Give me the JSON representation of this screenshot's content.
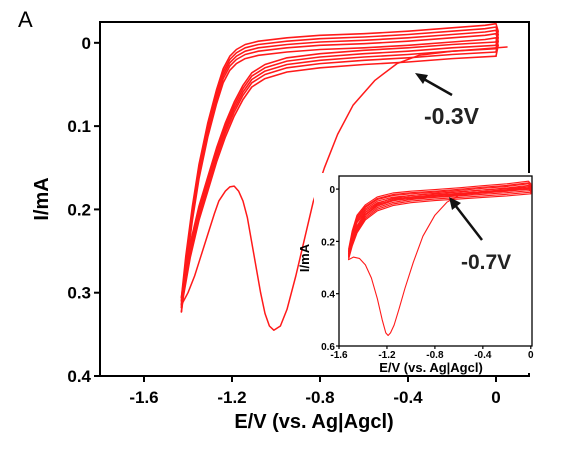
{
  "panel_label": "A",
  "colors": {
    "trace": "#ff1a1a",
    "axes": "#000000",
    "arrow": "#111111"
  },
  "chart_data": [
    {
      "type": "line",
      "name": "main",
      "xlabel": "E/V (vs. Ag|Agcl)",
      "ylabel": "I/mA",
      "xlim": [
        -1.8,
        0.15
      ],
      "ylim": [
        0.4,
        -0.025
      ],
      "y_inverted": true,
      "xticks": [
        -1.6,
        -1.2,
        -0.8,
        -0.4,
        0
      ],
      "xtick_labels": [
        "-1.6",
        "-1.2",
        "-0.8",
        "-0.4",
        "0"
      ],
      "yticks": [
        0,
        0.1,
        0.2,
        0.3,
        0.4
      ],
      "ytick_labels": [
        "0",
        "0.1",
        "0.2",
        "0.3",
        "0.4"
      ],
      "annotation": {
        "text": "-0.3V",
        "points_to": [
          -0.35,
          0.015
        ]
      },
      "series": [
        {
          "style": "first-scan",
          "x": [
            0.05,
            -0.2,
            -0.35,
            -0.45,
            -0.55,
            -0.65,
            -0.72,
            -0.78,
            -0.83,
            -0.87,
            -0.91,
            -0.95,
            -0.98,
            -1.01,
            -1.03,
            -1.05,
            -1.07,
            -1.09,
            -1.11,
            -1.13,
            -1.15,
            -1.17,
            -1.19,
            -1.21,
            -1.23,
            -1.26,
            -1.28,
            -1.31,
            -1.34,
            -1.37,
            -1.4,
            -1.42,
            -1.43
          ],
          "y": [
            0.005,
            0.01,
            0.015,
            0.025,
            0.045,
            0.075,
            0.11,
            0.15,
            0.19,
            0.235,
            0.28,
            0.32,
            0.34,
            0.345,
            0.34,
            0.325,
            0.3,
            0.27,
            0.24,
            0.21,
            0.19,
            0.178,
            0.172,
            0.173,
            0.178,
            0.19,
            0.205,
            0.23,
            0.255,
            0.28,
            0.3,
            0.31,
            0.315
          ]
        },
        {
          "style": "cycle-upper",
          "x": [
            -1.43,
            -1.41,
            -1.38,
            -1.35,
            -1.31,
            -1.27,
            -1.24,
            -1.21,
            -1.18,
            -1.14,
            -1.08,
            -0.95,
            -0.8,
            -0.6,
            -0.4,
            -0.2,
            -0.05,
            0,
            0.01,
            0
          ],
          "y": [
            0.31,
            0.26,
            0.2,
            0.15,
            0.1,
            0.06,
            0.035,
            0.02,
            0.012,
            0.006,
            0.002,
            -0.002,
            -0.005,
            -0.007,
            -0.01,
            -0.014,
            -0.017,
            -0.019,
            -0.01,
            0.003
          ]
        },
        {
          "style": "cycle-lower",
          "x": [
            0,
            -0.2,
            -0.4,
            -0.6,
            -0.8,
            -0.95,
            -1.05,
            -1.11,
            -1.15,
            -1.19,
            -1.23,
            -1.27,
            -1.31,
            -1.35,
            -1.39,
            -1.42,
            -1.43
          ],
          "y": [
            0.003,
            0.006,
            0.01,
            0.013,
            0.017,
            0.022,
            0.03,
            0.04,
            0.055,
            0.075,
            0.1,
            0.13,
            0.165,
            0.2,
            0.245,
            0.29,
            0.31
          ]
        }
      ]
    },
    {
      "type": "line",
      "name": "inset",
      "xlabel": "E/V (vs. Ag|Agcl)",
      "ylabel": "I/mA",
      "xlim": [
        -1.6,
        0.01
      ],
      "ylim": [
        0.6,
        -0.05
      ],
      "y_inverted": true,
      "xticks": [
        -1.6,
        -1.2,
        -0.8,
        -0.4,
        0
      ],
      "xtick_labels": [
        "-1.6",
        "-1.2",
        "-0.8",
        "-0.4",
        "0"
      ],
      "yticks": [
        0,
        0.2,
        0.4,
        0.6
      ],
      "ytick_labels": [
        "0",
        "0.2",
        "0.4",
        "0.6"
      ],
      "annotation": {
        "text": "-0.7V",
        "points_to": [
          -0.58,
          0.02
        ]
      },
      "series": [
        {
          "style": "first-scan",
          "x": [
            0,
            -0.2,
            -0.4,
            -0.5,
            -0.6,
            -0.7,
            -0.8,
            -0.9,
            -0.98,
            -1.05,
            -1.1,
            -1.14,
            -1.17,
            -1.19,
            -1.21,
            -1.24,
            -1.28,
            -1.33,
            -1.38,
            -1.43,
            -1.48,
            -1.52
          ],
          "y": [
            0.0,
            0.005,
            0.01,
            0.015,
            0.025,
            0.05,
            0.1,
            0.18,
            0.28,
            0.38,
            0.46,
            0.52,
            0.55,
            0.56,
            0.55,
            0.5,
            0.42,
            0.34,
            0.29,
            0.265,
            0.26,
            0.27
          ]
        },
        {
          "style": "cycle-upper",
          "x": [
            -1.52,
            -1.49,
            -1.45,
            -1.38,
            -1.28,
            -1.15,
            -1.0,
            -0.8,
            -0.6,
            -0.4,
            -0.2,
            -0.02,
            0,
            0
          ],
          "y": [
            0.24,
            0.17,
            0.11,
            0.07,
            0.04,
            0.025,
            0.018,
            0.012,
            0.005,
            -0.003,
            -0.01,
            -0.02,
            -0.01,
            0.0
          ]
        },
        {
          "style": "cycle-lower",
          "x": [
            0,
            -0.2,
            -0.4,
            -0.6,
            -0.8,
            -1.0,
            -1.15,
            -1.28,
            -1.38,
            -1.45,
            -1.49,
            -1.52
          ],
          "y": [
            0.0,
            0.008,
            0.014,
            0.02,
            0.026,
            0.034,
            0.045,
            0.065,
            0.1,
            0.15,
            0.2,
            0.25
          ]
        }
      ]
    }
  ]
}
